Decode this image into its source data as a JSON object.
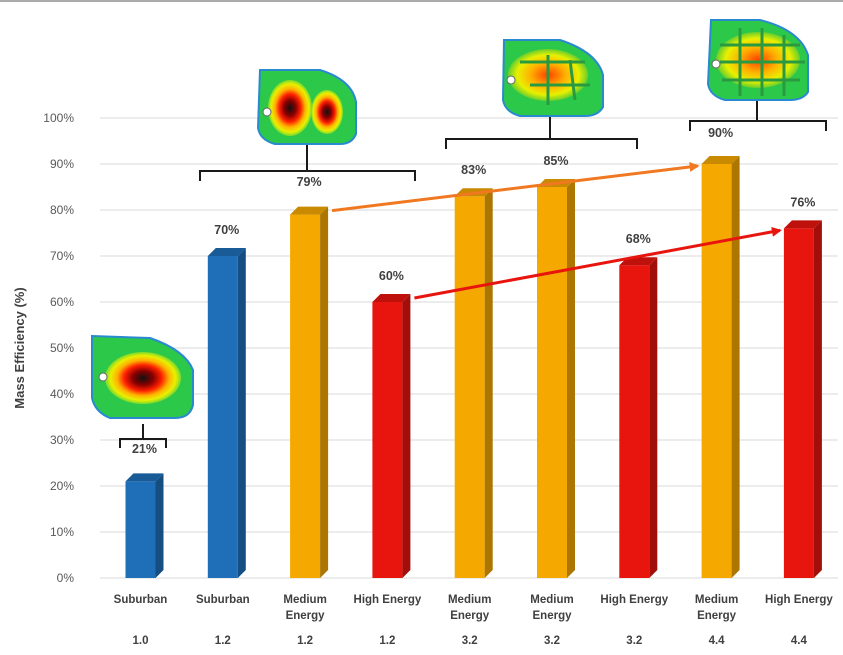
{
  "chart_data": {
    "type": "bar",
    "ylabel": "Mass Efficiency (%)",
    "ylim": [
      0,
      100
    ],
    "yticks": [
      "0%",
      "10%",
      "20%",
      "30%",
      "40%",
      "50%",
      "60%",
      "70%",
      "80%",
      "90%",
      "100%"
    ],
    "grid": true,
    "categories": [
      {
        "line1": "Suburban",
        "line2": "",
        "sub": "1.0"
      },
      {
        "line1": "Suburban",
        "line2": "",
        "sub": "1.2"
      },
      {
        "line1": "Medium",
        "line2": "Energy",
        "sub": "1.2"
      },
      {
        "line1": "High Energy",
        "line2": "",
        "sub": "1.2"
      },
      {
        "line1": "Medium",
        "line2": "Energy",
        "sub": "3.2"
      },
      {
        "line1": "Medium",
        "line2": "Energy",
        "sub": "3.2"
      },
      {
        "line1": "High Energy",
        "line2": "",
        "sub": "3.2"
      },
      {
        "line1": "Medium",
        "line2": "Energy",
        "sub": "4.4"
      },
      {
        "line1": "High Energy",
        "line2": "",
        "sub": "4.4"
      }
    ],
    "values": [
      21,
      70,
      79,
      60,
      83,
      85,
      68,
      90,
      76
    ],
    "labels": [
      "21%",
      "70%",
      "79%",
      "60%",
      "83%",
      "85%",
      "68%",
      "90%",
      "76%"
    ],
    "colors": [
      "#1f6fb8",
      "#1f6fb8",
      "#f5a800",
      "#e8150f",
      "#f5a800",
      "#f5a800",
      "#e8150f",
      "#f5a800",
      "#e8150f"
    ],
    "arrows": [
      {
        "from": 2,
        "to": 7,
        "color": "#f07820"
      },
      {
        "from": 3,
        "to": 8,
        "color": "#e8150f"
      }
    ]
  }
}
